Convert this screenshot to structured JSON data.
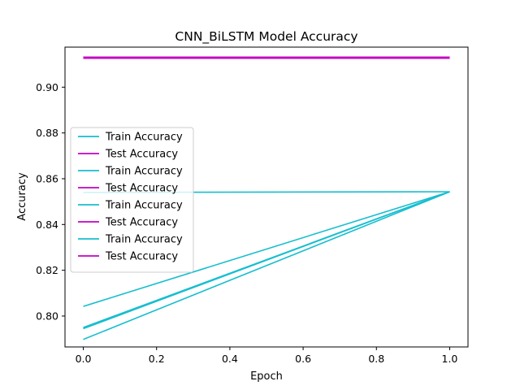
{
  "chart_data": {
    "type": "line",
    "title": "CNN_BiLSTM Model Accuracy",
    "xlabel": "Epoch",
    "ylabel": "Accuracy",
    "xlim": [
      -0.05,
      1.05
    ],
    "ylim": [
      0.7865,
      0.9175
    ],
    "xticks": [
      "0.0",
      "0.2",
      "0.4",
      "0.6",
      "0.8",
      "1.0"
    ],
    "yticks": [
      "0.80",
      "0.82",
      "0.84",
      "0.86",
      "0.88",
      "0.90"
    ],
    "grid": false,
    "legend_position": "center-left",
    "colors": {
      "train": "#17becf",
      "test": "#c400c4"
    },
    "series": [
      {
        "name": "Train Accuracy",
        "kind": "train",
        "x": [
          0,
          1
        ],
        "y": [
          0.8042,
          0.8543
        ]
      },
      {
        "name": "Test Accuracy",
        "kind": "test",
        "x": [
          0,
          1
        ],
        "y": [
          0.9129,
          0.9129
        ]
      },
      {
        "name": "Train Accuracy",
        "kind": "train",
        "x": [
          0,
          1
        ],
        "y": [
          0.854,
          0.8543
        ]
      },
      {
        "name": "Test Accuracy",
        "kind": "test",
        "x": [
          0,
          1
        ],
        "y": [
          0.9129,
          0.9129
        ]
      },
      {
        "name": "Train Accuracy",
        "kind": "train",
        "x": [
          0,
          1
        ],
        "y": [
          0.7945,
          0.8543
        ]
      },
      {
        "name": "Test Accuracy",
        "kind": "test",
        "x": [
          0,
          1
        ],
        "y": [
          0.9129,
          0.9129
        ]
      },
      {
        "name": "Train Accuracy",
        "kind": "train",
        "x": [
          0,
          1
        ],
        "y": [
          0.7898,
          0.8543
        ]
      },
      {
        "name": "Test Accuracy",
        "kind": "test",
        "x": [
          0,
          1
        ],
        "y": [
          0.9129,
          0.9129
        ]
      },
      {
        "name": "",
        "kind": "train",
        "x": [
          0,
          1
        ],
        "y": [
          0.795,
          0.8543
        ]
      }
    ]
  }
}
